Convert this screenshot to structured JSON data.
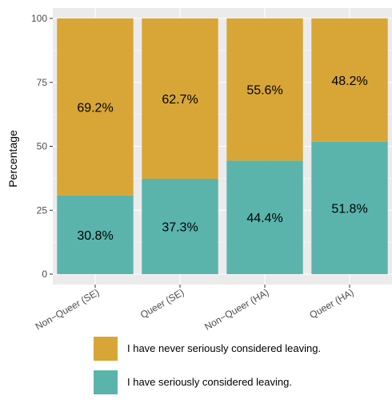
{
  "chart_data": {
    "type": "bar",
    "stacked": true,
    "categories": [
      "Non−Queer (SE)",
      "Queer (SE)",
      "Non−Queer (HA)",
      "Queer (HA)"
    ],
    "series": [
      {
        "name": "I have seriously considered leaving.",
        "color": "#5ab4ac",
        "values": [
          30.8,
          37.3,
          44.4,
          51.8
        ],
        "labels": [
          "30.8%",
          "37.3%",
          "44.4%",
          "51.8%"
        ]
      },
      {
        "name": "I have never seriously considered leaving.",
        "color": "#d8a636",
        "values": [
          69.2,
          62.7,
          55.6,
          48.2
        ],
        "labels": [
          "69.2%",
          "62.7%",
          "55.6%",
          "48.2%"
        ]
      }
    ],
    "ylabel": "Percentage",
    "xlabel": "",
    "ylim": [
      0,
      100
    ],
    "yticks": [
      0,
      25,
      50,
      75,
      100
    ],
    "grid": true,
    "legend_position": "bottom",
    "panel_background": "#ebebeb"
  }
}
